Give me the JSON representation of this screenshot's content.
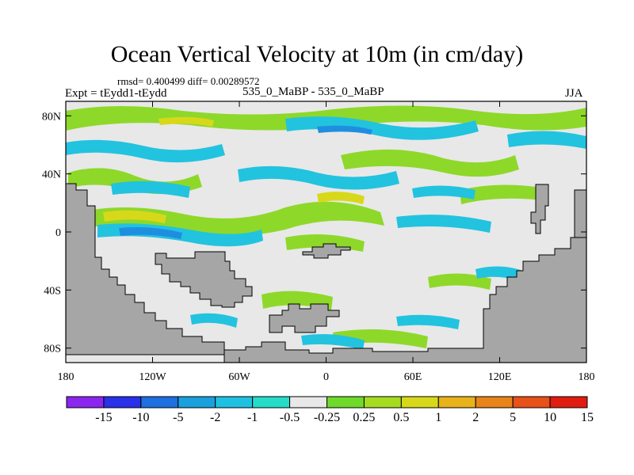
{
  "title": "Ocean Vertical Velocity at 10m (in cm/day)",
  "stats": "rmsd= 0.400499 diff= 0.00289572",
  "experiment": "Expt = tEydd1-tEydd",
  "period": "535_0_MaBP - 535_0_MaBP",
  "season": "JJA",
  "map": {
    "lon_range": [
      -180,
      180
    ],
    "lat_range": [
      -90,
      90
    ],
    "lat_ticks": [
      "80N",
      "40N",
      "0",
      "40S",
      "80S"
    ],
    "lon_ticks": [
      "180",
      "120W",
      "60W",
      "0",
      "60E",
      "120E",
      "180"
    ],
    "land_color": "#a6a6a6",
    "ocean_color": "#e8e8e8"
  },
  "colorbar": {
    "colors": [
      "#8b26ef",
      "#2a31e8",
      "#1e6fe0",
      "#1aa0dd",
      "#1fc1e2",
      "#26dcc8",
      "#e8e8e8",
      "#6fd92c",
      "#a6dc20",
      "#d8d81a",
      "#e8b21a",
      "#e8841a",
      "#e85118",
      "#e01c10"
    ],
    "labels": [
      "-15",
      "-10",
      "-5",
      "-2",
      "-1",
      "-0.5",
      "-0.25",
      "0.25",
      "0.5",
      "1",
      "2",
      "5",
      "10",
      "15"
    ]
  }
}
